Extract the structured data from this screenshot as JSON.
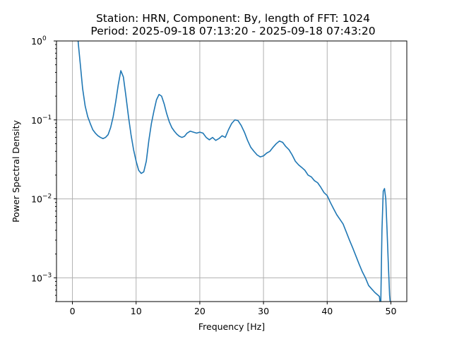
{
  "chart_data": {
    "type": "line",
    "title_line1": "Station: HRN, Component: By, length of FFT: 1024",
    "title_line2": "Period: 2025-09-18 07:13:20 - 2025-09-18 07:43:20",
    "xlabel": "Frequency [Hz]",
    "ylabel": "Power Spectral Density",
    "xlim": [
      -2.5,
      52.5
    ],
    "ylim": [
      0.0005,
      1
    ],
    "yscale": "log",
    "grid": true,
    "xticks": [
      0,
      10,
      20,
      30,
      40,
      50
    ],
    "xtick_labels": [
      "0",
      "10",
      "20",
      "30",
      "40",
      "50"
    ],
    "yticks": [
      0.001,
      0.01,
      0.1,
      1
    ],
    "ytick_labels": [
      {
        "base": "10",
        "exp": "−3"
      },
      {
        "base": "10",
        "exp": "−2"
      },
      {
        "base": "10",
        "exp": "−1"
      },
      {
        "base": "10",
        "exp": "0"
      }
    ],
    "series": [
      {
        "color": "#1f77b4",
        "x": [
          0.8,
          1.0,
          1.3,
          1.6,
          2.0,
          2.4,
          2.8,
          3.2,
          3.6,
          4.0,
          4.4,
          4.8,
          5.2,
          5.6,
          6.0,
          6.4,
          6.8,
          7.2,
          7.6,
          8.0,
          8.4,
          8.8,
          9.2,
          9.6,
          10.0,
          10.4,
          10.8,
          11.2,
          11.6,
          12.0,
          12.4,
          12.8,
          13.2,
          13.6,
          14.0,
          14.4,
          14.8,
          15.2,
          15.6,
          16.0,
          16.4,
          16.8,
          17.2,
          17.6,
          18.0,
          18.5,
          19.0,
          19.5,
          20.0,
          20.5,
          21.0,
          21.5,
          22.0,
          22.5,
          23.0,
          23.5,
          24.0,
          24.5,
          25.0,
          25.5,
          26.0,
          26.5,
          27.0,
          27.5,
          28.0,
          28.5,
          29.0,
          29.5,
          30.0,
          30.5,
          31.0,
          31.5,
          32.0,
          32.5,
          33.0,
          33.5,
          34.0,
          34.5,
          35.0,
          35.5,
          36.0,
          36.5,
          37.0,
          37.5,
          38.0,
          38.5,
          39.0,
          39.5,
          40.0,
          40.5,
          41.0,
          41.5,
          42.0,
          42.5,
          43.0,
          43.5,
          44.0,
          44.5,
          45.0,
          45.5,
          46.0,
          46.5,
          47.0,
          47.5,
          48.0,
          48.2,
          48.4,
          48.6,
          48.8,
          49.0,
          49.2,
          49.4,
          49.6,
          49.8,
          50.0
        ],
        "y": [
          1.2,
          0.8,
          0.45,
          0.25,
          0.15,
          0.11,
          0.09,
          0.075,
          0.068,
          0.063,
          0.06,
          0.058,
          0.06,
          0.065,
          0.08,
          0.11,
          0.17,
          0.28,
          0.42,
          0.35,
          0.2,
          0.11,
          0.065,
          0.042,
          0.03,
          0.023,
          0.021,
          0.022,
          0.03,
          0.055,
          0.09,
          0.13,
          0.18,
          0.21,
          0.2,
          0.16,
          0.12,
          0.095,
          0.08,
          0.072,
          0.066,
          0.062,
          0.06,
          0.062,
          0.068,
          0.072,
          0.07,
          0.068,
          0.07,
          0.068,
          0.06,
          0.056,
          0.06,
          0.055,
          0.058,
          0.063,
          0.06,
          0.075,
          0.09,
          0.1,
          0.098,
          0.085,
          0.07,
          0.055,
          0.045,
          0.04,
          0.036,
          0.034,
          0.035,
          0.038,
          0.04,
          0.045,
          0.05,
          0.054,
          0.052,
          0.046,
          0.042,
          0.036,
          0.03,
          0.027,
          0.025,
          0.023,
          0.02,
          0.019,
          0.017,
          0.016,
          0.014,
          0.012,
          0.011,
          0.009,
          0.0075,
          0.0063,
          0.0055,
          0.0048,
          0.0038,
          0.003,
          0.0024,
          0.0019,
          0.0015,
          0.0012,
          0.001,
          0.0008,
          0.00072,
          0.00065,
          0.0006,
          0.00058,
          0.0004,
          0.004,
          0.0125,
          0.0135,
          0.01,
          0.004,
          0.0015,
          0.0006,
          0.0004
        ]
      }
    ]
  }
}
